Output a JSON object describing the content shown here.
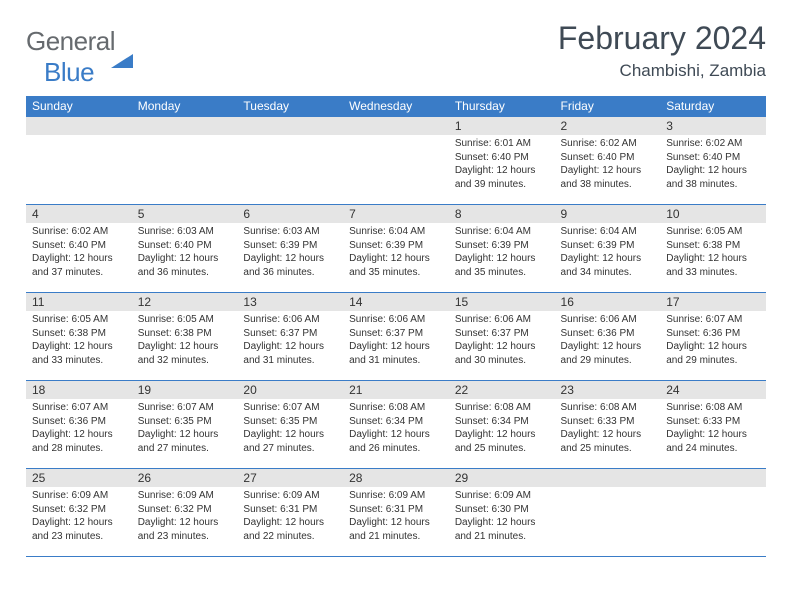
{
  "logo": {
    "part1": "General",
    "part2": "Blue"
  },
  "title": "February 2024",
  "location": "Chambishi, Zambia",
  "day_headers": [
    "Sunday",
    "Monday",
    "Tuesday",
    "Wednesday",
    "Thursday",
    "Friday",
    "Saturday"
  ],
  "colors": {
    "header_bg": "#3a7cc7",
    "header_fg": "#ffffff",
    "daynum_bg": "#e5e5e5",
    "text": "#333333",
    "logo_gray": "#666a6e",
    "logo_blue": "#3a7cc7",
    "title_color": "#3f4a55"
  },
  "weeks": [
    [
      null,
      null,
      null,
      null,
      {
        "n": "1",
        "sr": "6:01 AM",
        "ss": "6:40 PM",
        "dl": "12 hours and 39 minutes."
      },
      {
        "n": "2",
        "sr": "6:02 AM",
        "ss": "6:40 PM",
        "dl": "12 hours and 38 minutes."
      },
      {
        "n": "3",
        "sr": "6:02 AM",
        "ss": "6:40 PM",
        "dl": "12 hours and 38 minutes."
      }
    ],
    [
      {
        "n": "4",
        "sr": "6:02 AM",
        "ss": "6:40 PM",
        "dl": "12 hours and 37 minutes."
      },
      {
        "n": "5",
        "sr": "6:03 AM",
        "ss": "6:40 PM",
        "dl": "12 hours and 36 minutes."
      },
      {
        "n": "6",
        "sr": "6:03 AM",
        "ss": "6:39 PM",
        "dl": "12 hours and 36 minutes."
      },
      {
        "n": "7",
        "sr": "6:04 AM",
        "ss": "6:39 PM",
        "dl": "12 hours and 35 minutes."
      },
      {
        "n": "8",
        "sr": "6:04 AM",
        "ss": "6:39 PM",
        "dl": "12 hours and 35 minutes."
      },
      {
        "n": "9",
        "sr": "6:04 AM",
        "ss": "6:39 PM",
        "dl": "12 hours and 34 minutes."
      },
      {
        "n": "10",
        "sr": "6:05 AM",
        "ss": "6:38 PM",
        "dl": "12 hours and 33 minutes."
      }
    ],
    [
      {
        "n": "11",
        "sr": "6:05 AM",
        "ss": "6:38 PM",
        "dl": "12 hours and 33 minutes."
      },
      {
        "n": "12",
        "sr": "6:05 AM",
        "ss": "6:38 PM",
        "dl": "12 hours and 32 minutes."
      },
      {
        "n": "13",
        "sr": "6:06 AM",
        "ss": "6:37 PM",
        "dl": "12 hours and 31 minutes."
      },
      {
        "n": "14",
        "sr": "6:06 AM",
        "ss": "6:37 PM",
        "dl": "12 hours and 31 minutes."
      },
      {
        "n": "15",
        "sr": "6:06 AM",
        "ss": "6:37 PM",
        "dl": "12 hours and 30 minutes."
      },
      {
        "n": "16",
        "sr": "6:06 AM",
        "ss": "6:36 PM",
        "dl": "12 hours and 29 minutes."
      },
      {
        "n": "17",
        "sr": "6:07 AM",
        "ss": "6:36 PM",
        "dl": "12 hours and 29 minutes."
      }
    ],
    [
      {
        "n": "18",
        "sr": "6:07 AM",
        "ss": "6:36 PM",
        "dl": "12 hours and 28 minutes."
      },
      {
        "n": "19",
        "sr": "6:07 AM",
        "ss": "6:35 PM",
        "dl": "12 hours and 27 minutes."
      },
      {
        "n": "20",
        "sr": "6:07 AM",
        "ss": "6:35 PM",
        "dl": "12 hours and 27 minutes."
      },
      {
        "n": "21",
        "sr": "6:08 AM",
        "ss": "6:34 PM",
        "dl": "12 hours and 26 minutes."
      },
      {
        "n": "22",
        "sr": "6:08 AM",
        "ss": "6:34 PM",
        "dl": "12 hours and 25 minutes."
      },
      {
        "n": "23",
        "sr": "6:08 AM",
        "ss": "6:33 PM",
        "dl": "12 hours and 25 minutes."
      },
      {
        "n": "24",
        "sr": "6:08 AM",
        "ss": "6:33 PM",
        "dl": "12 hours and 24 minutes."
      }
    ],
    [
      {
        "n": "25",
        "sr": "6:09 AM",
        "ss": "6:32 PM",
        "dl": "12 hours and 23 minutes."
      },
      {
        "n": "26",
        "sr": "6:09 AM",
        "ss": "6:32 PM",
        "dl": "12 hours and 23 minutes."
      },
      {
        "n": "27",
        "sr": "6:09 AM",
        "ss": "6:31 PM",
        "dl": "12 hours and 22 minutes."
      },
      {
        "n": "28",
        "sr": "6:09 AM",
        "ss": "6:31 PM",
        "dl": "12 hours and 21 minutes."
      },
      {
        "n": "29",
        "sr": "6:09 AM",
        "ss": "6:30 PM",
        "dl": "12 hours and 21 minutes."
      },
      null,
      null
    ]
  ],
  "labels": {
    "sunrise": "Sunrise:",
    "sunset": "Sunset:",
    "daylight": "Daylight:"
  }
}
